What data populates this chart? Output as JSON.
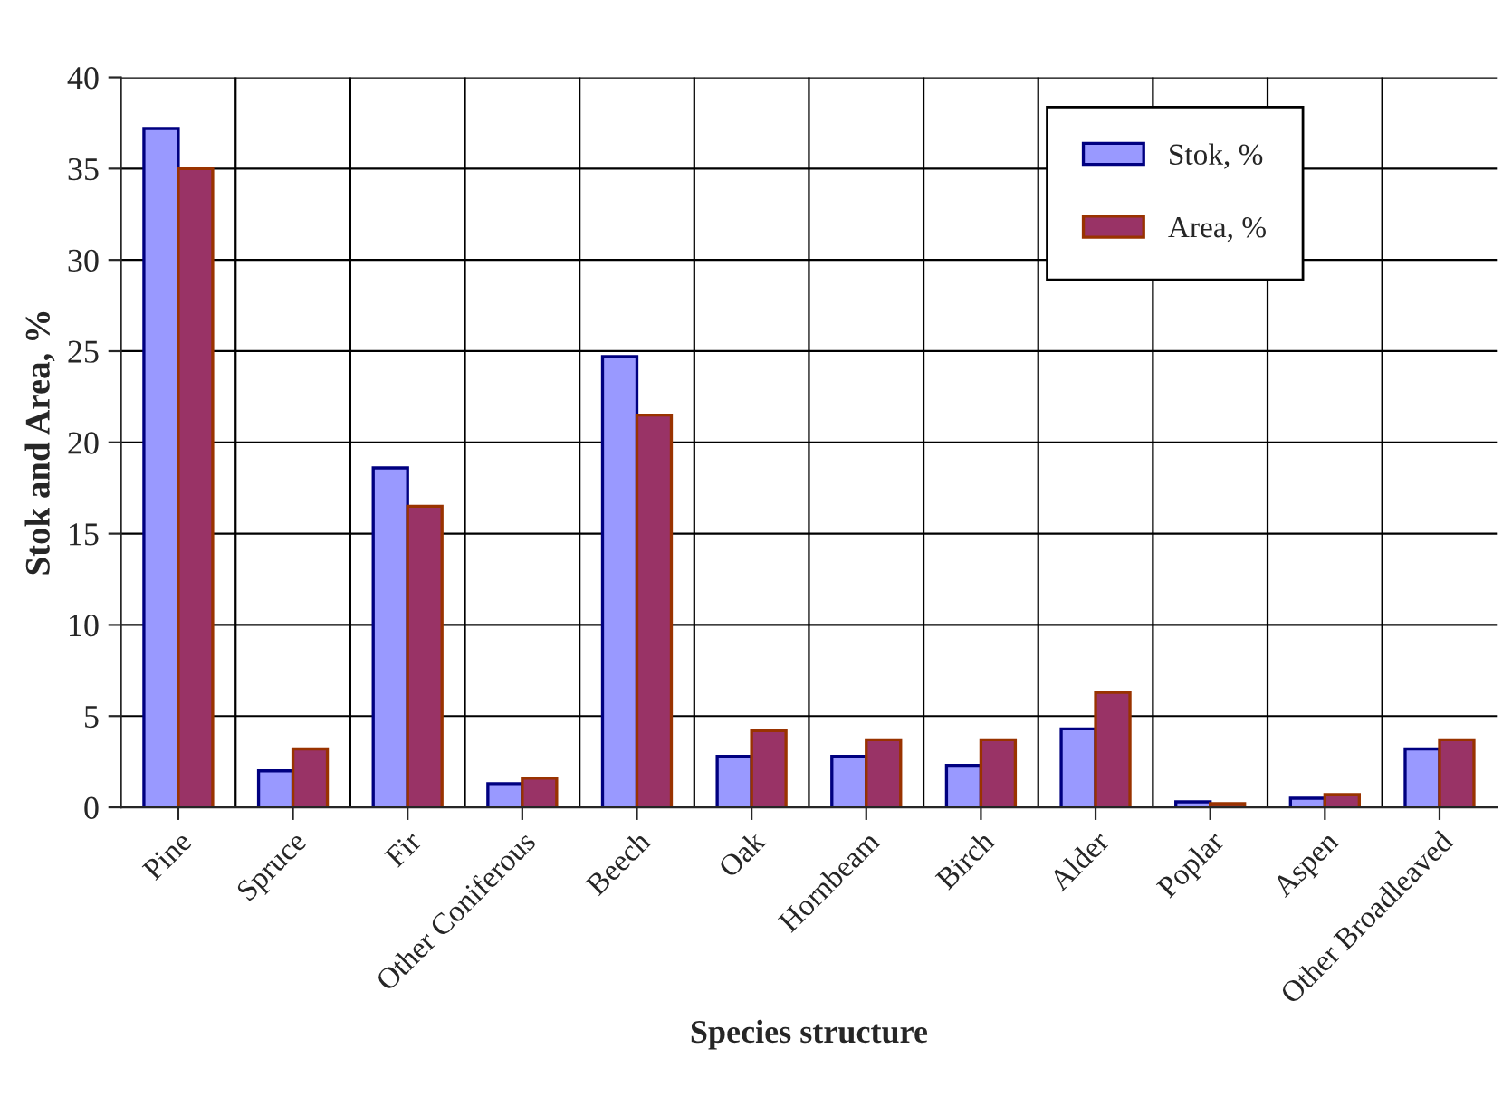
{
  "chart_data": {
    "type": "bar",
    "xlabel": "Species structure",
    "ylabel": "Stok and Area, %",
    "categories": [
      "Pine",
      "Spruce",
      "Fir",
      "Other Coniferous",
      "Beech",
      "Oak",
      "Hornbeam",
      "Birch",
      "Alder",
      "Poplar",
      "Aspen",
      "Other Broadleaved"
    ],
    "series": [
      {
        "name": "Stok, %",
        "color": "#9999ff",
        "values": [
          37.2,
          2.0,
          18.6,
          1.3,
          24.7,
          2.8,
          2.8,
          2.3,
          4.3,
          0.3,
          0.5,
          3.2
        ]
      },
      {
        "name": "Area, %",
        "color": "#993366",
        "values": [
          35.0,
          3.2,
          16.5,
          1.6,
          21.5,
          4.2,
          3.7,
          3.7,
          6.3,
          0.2,
          0.7,
          3.7
        ]
      }
    ],
    "ylim": [
      0,
      40
    ],
    "yticks": [
      0,
      5,
      10,
      15,
      20,
      25,
      30,
      35,
      40
    ],
    "grid": true,
    "legend": "top right"
  }
}
